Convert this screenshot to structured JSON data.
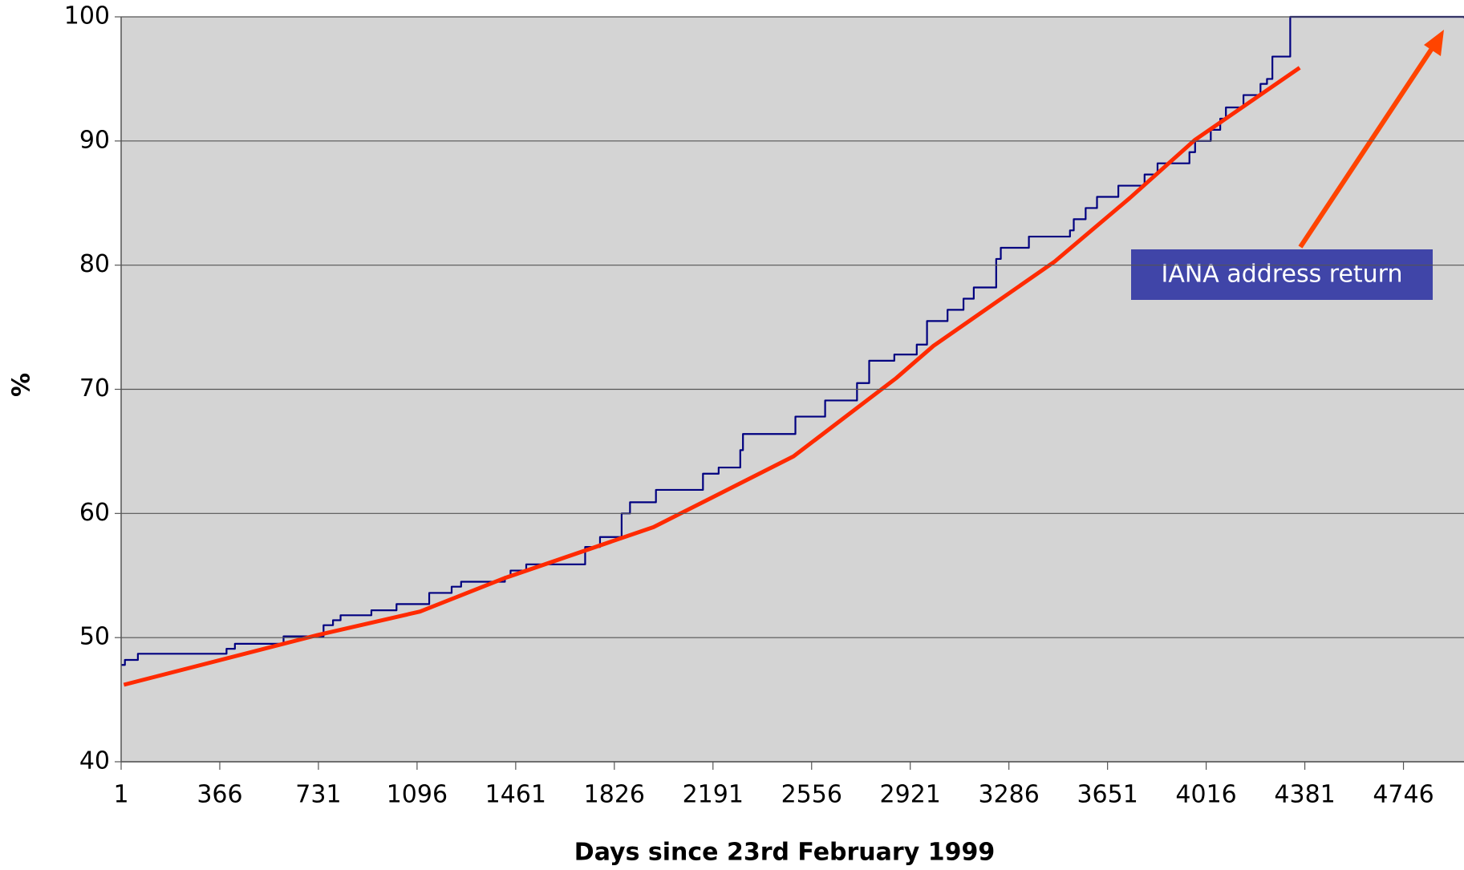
{
  "chart_data": {
    "type": "line",
    "xlabel": "Days since 23rd February 1999",
    "ylabel": "%",
    "annotation": "IANA address return",
    "xlim": [
      1,
      4970
    ],
    "ylim": [
      40,
      100
    ],
    "xticks": [
      1,
      366,
      731,
      1096,
      1461,
      1826,
      2191,
      2556,
      2921,
      3286,
      3651,
      4016,
      4381,
      4746
    ],
    "yticks": [
      40,
      50,
      60,
      70,
      80,
      90,
      100
    ],
    "grid": true,
    "series": [
      {
        "color": "#000080",
        "step": true,
        "x": [
          1,
          15,
          63,
          391,
          422,
          602,
          750,
          785,
          813,
          927,
          1020,
          1141,
          1224,
          1259,
          1421,
          1442,
          1500,
          1718,
          1773,
          1853,
          1884,
          1980,
          2154,
          2212,
          2292,
          2302,
          2496,
          2606,
          2724,
          2769,
          2862,
          2945,
          2983,
          3059,
          3118,
          3156,
          3239,
          3256,
          3360,
          3512,
          3526,
          3570,
          3612,
          3691,
          3788,
          3836,
          3954,
          3975,
          4033,
          4068,
          4089,
          4154,
          4217,
          4241,
          4261,
          4327,
          4970
        ],
        "values": [
          47.8,
          48.2,
          48.7,
          49.1,
          49.5,
          50.1,
          51.0,
          51.4,
          51.8,
          52.2,
          52.7,
          53.6,
          54.1,
          54.5,
          54.9,
          55.4,
          55.9,
          57.3,
          58.1,
          60.0,
          60.9,
          61.9,
          63.2,
          63.7,
          65.1,
          66.4,
          67.8,
          69.1,
          70.5,
          72.3,
          72.8,
          73.6,
          75.5,
          76.4,
          77.3,
          78.2,
          80.5,
          81.4,
          82.3,
          82.8,
          83.7,
          84.6,
          85.5,
          86.4,
          87.3,
          88.2,
          89.1,
          90.0,
          90.9,
          91.8,
          92.7,
          93.7,
          94.6,
          95.0,
          96.8,
          100,
          99.9
        ]
      },
      {
        "color": "#ff2a00",
        "step": false,
        "x": [
          11,
          727,
          1107,
          1421,
          1971,
          2489,
          2869,
          3007,
          3456,
          3733,
          3975,
          4362
        ],
        "values": [
          46.2,
          50.2,
          52.1,
          54.8,
          58.9,
          64.6,
          70.9,
          73.5,
          80.3,
          85.4,
          90.1,
          95.9
        ]
      }
    ]
  }
}
